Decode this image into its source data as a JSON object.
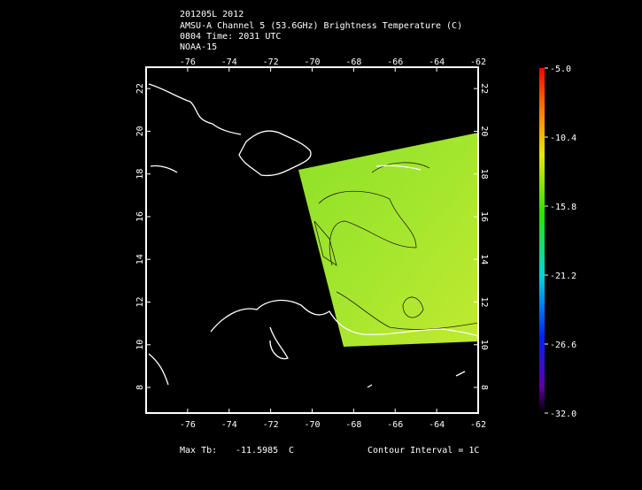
{
  "header": {
    "lines": [
      "201205L 2012",
      "AMSU-A Channel 5 (53.6GHz) Brightness Temperature (C)",
      "0804 Time: 2031 UTC",
      "NOAA-15"
    ]
  },
  "map": {
    "xlim": [
      -78,
      -62
    ],
    "ylim": [
      6.8,
      23
    ],
    "xticks": [
      -76,
      -74,
      -72,
      -70,
      -68,
      -66,
      -64,
      -62
    ],
    "yticks": [
      8,
      10,
      12,
      14,
      16,
      18,
      20,
      22
    ]
  },
  "colorbar": {
    "lim": [
      -32,
      -5
    ],
    "ticks": [
      {
        "value": -5,
        "label": "-5.0"
      },
      {
        "value": -10.4,
        "label": "-10.4"
      },
      {
        "value": -15.8,
        "label": "-15.8"
      },
      {
        "value": -21.2,
        "label": "-21.2"
      },
      {
        "value": -26.6,
        "label": "-26.6"
      },
      {
        "value": -32,
        "label": "-32.0"
      }
    ]
  },
  "footer": {
    "max_label": "Max Tb:",
    "max_value": "-11.5985",
    "unit": "C",
    "contour": "Contour Interval = 1C"
  }
}
